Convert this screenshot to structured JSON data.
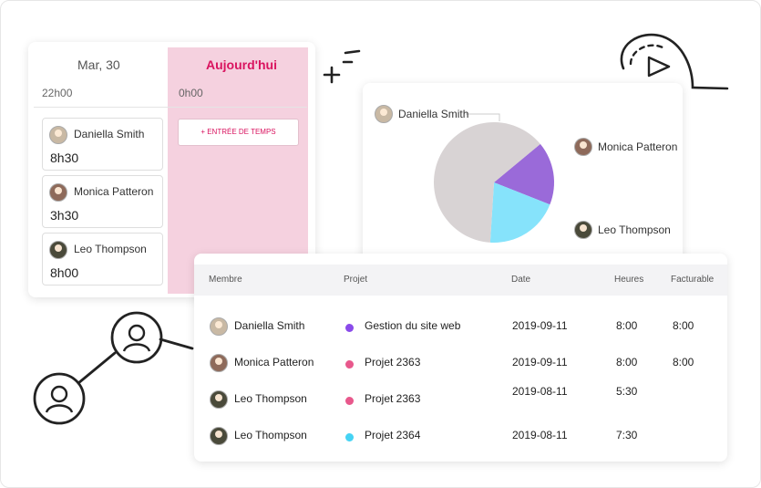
{
  "calendar": {
    "day_label": "Mar, 30",
    "today_label": "Aujourd'hui",
    "day_time": "22h00",
    "today_time": "0h00",
    "add_entry_label": "+ ENTRÉE DE TEMPS",
    "entries": [
      {
        "name": "Daniella Smith",
        "hours": "8h30"
      },
      {
        "name": "Monica Patteron",
        "hours": "3h30"
      },
      {
        "name": "Leo Thompson",
        "hours": "8h00"
      }
    ]
  },
  "chart_data": {
    "type": "pie",
    "series": [
      {
        "name": "Daniella Smith",
        "value": 63,
        "color": "#d8d3d4"
      },
      {
        "name": "Monica Patteron",
        "value": 17,
        "color": "#9a6ad9"
      },
      {
        "name": "Leo Thompson",
        "value": 20,
        "color": "#86e3fb"
      }
    ]
  },
  "table": {
    "headers": {
      "member": "Membre",
      "project": "Projet",
      "date": "Date",
      "hours": "Heures",
      "billable": "Facturable"
    },
    "rows": [
      {
        "member": "Daniella Smith",
        "project": "Gestion du site web",
        "project_color": "#8a4bea",
        "date": "2019-09-11",
        "hours": "8:00",
        "billable": "8:00"
      },
      {
        "member": "Monica Patteron",
        "project": "Projet 2363",
        "project_color": "#e8588c",
        "date": "2019-09-11",
        "hours": "8:00",
        "billable": "8:00"
      },
      {
        "member": "Leo Thompson",
        "project": "Projet 2363",
        "project_color": "#e8588c",
        "date": "2019-08-11",
        "hours": "5:30",
        "billable": ""
      },
      {
        "member": "Leo Thompson",
        "project": "Projet 2364",
        "project_color": "#45d3f4",
        "date": "2019-08-11",
        "hours": "7:30",
        "billable": ""
      }
    ]
  }
}
